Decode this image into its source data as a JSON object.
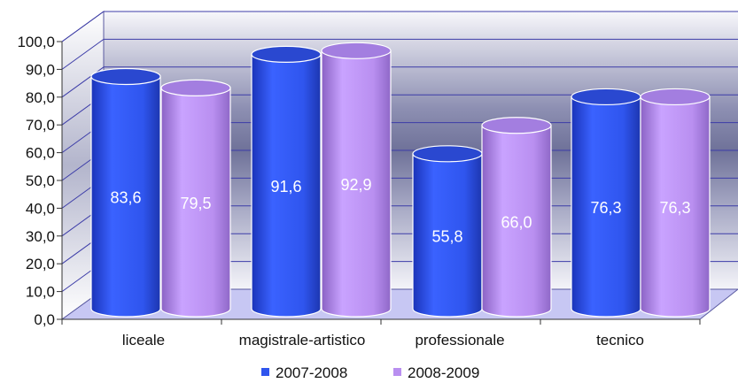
{
  "chart_data": {
    "type": "bar",
    "title": "",
    "xlabel": "",
    "ylabel": "",
    "categories": [
      "liceale",
      "magistrale-artistico",
      "professionale",
      "tecnico"
    ],
    "series": [
      {
        "name": "2007-2008",
        "values": [
          83.6,
          91.6,
          55.8,
          76.3
        ],
        "labels": [
          "83,6",
          "91,6",
          "55,8",
          "76,3"
        ],
        "color": "#2f55ee"
      },
      {
        "name": "2008-2009",
        "values": [
          79.5,
          92.9,
          66.0,
          76.3
        ],
        "labels": [
          "79,5",
          "92,9",
          "66,0",
          "76,3"
        ],
        "color": "#b98ff0"
      }
    ],
    "ylim": [
      0,
      100
    ],
    "yticks": [
      0,
      10,
      20,
      30,
      40,
      50,
      60,
      70,
      80,
      90,
      100
    ],
    "ytick_labels": [
      "0,0",
      "10,0",
      "20,0",
      "30,0",
      "40,0",
      "50,0",
      "60,0",
      "70,0",
      "80,0",
      "90,0",
      "100,0"
    ],
    "grid": true,
    "legend_position": "bottom",
    "style": "3d-cylinder"
  }
}
